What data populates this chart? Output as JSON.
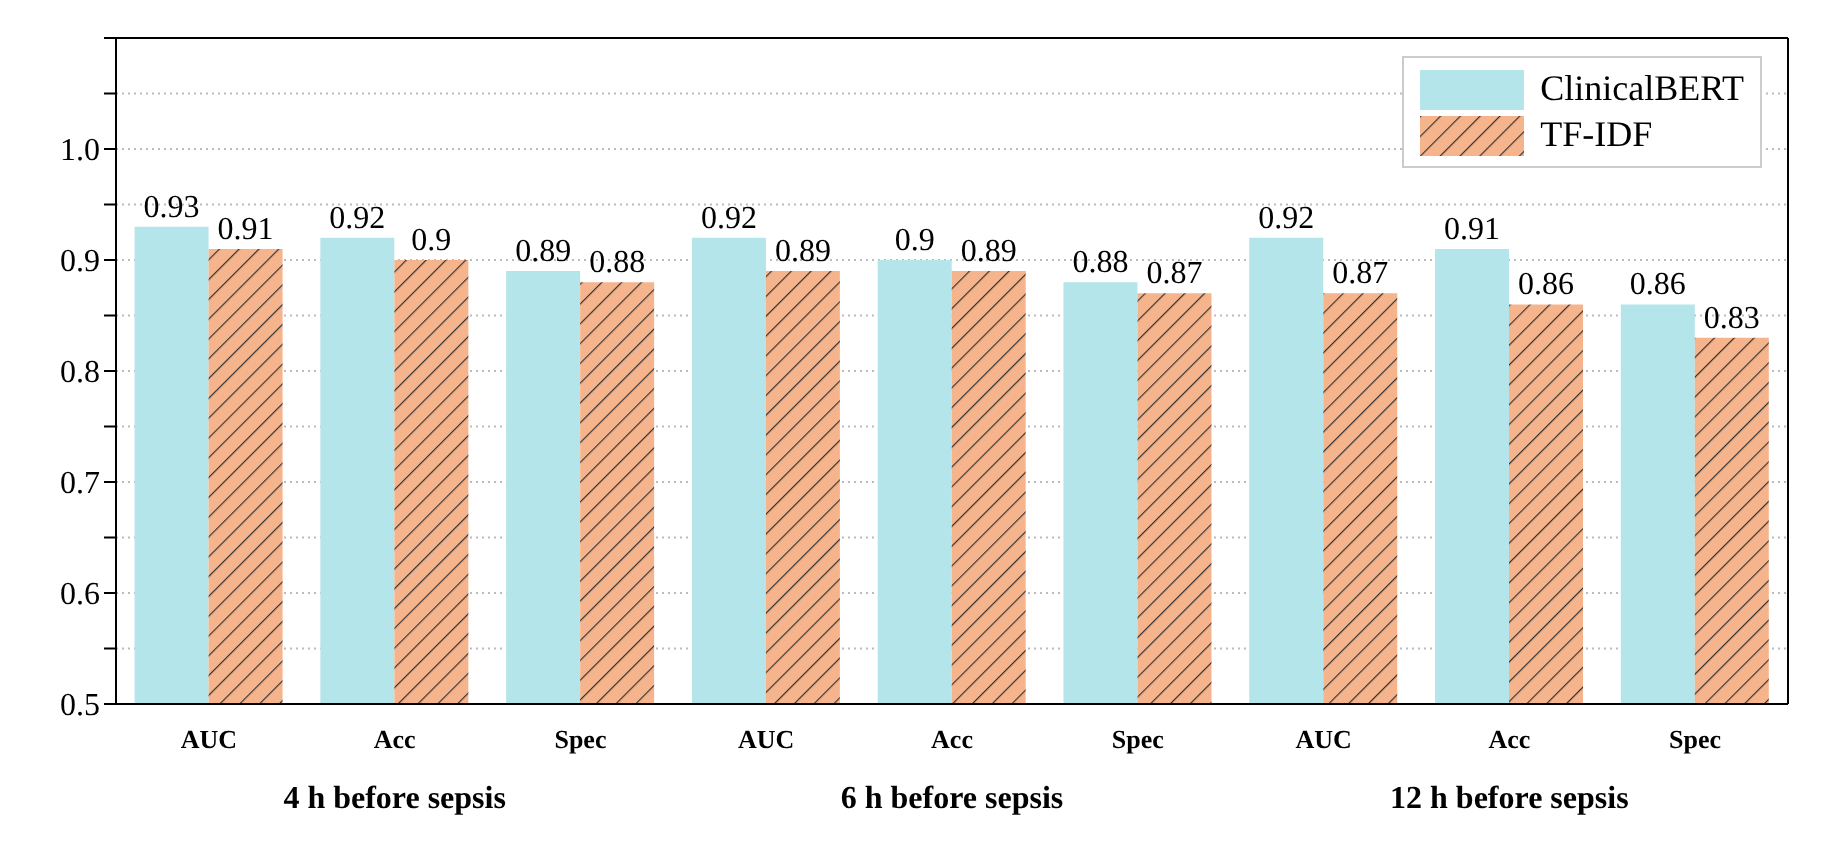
{
  "chart_data": {
    "type": "bar",
    "categories": [
      "AUC",
      "Acc",
      "Spec",
      "AUC",
      "Acc",
      "Spec",
      "AUC",
      "Acc",
      "Spec"
    ],
    "series": [
      {
        "name": "ClinicalBERT",
        "color": "#b3e5ea",
        "values": [
          0.93,
          0.92,
          0.89,
          0.92,
          0.9,
          0.88,
          0.92,
          0.91,
          0.86
        ]
      },
      {
        "name": "TF-IDF",
        "color": "#f6b48c",
        "values": [
          0.91,
          0.9,
          0.88,
          0.89,
          0.89,
          0.87,
          0.87,
          0.86,
          0.83
        ]
      }
    ],
    "annotations": [
      "4 h before sepsis",
      "6 h before sepsis",
      "12 h before sepsis"
    ],
    "ylim": [
      0.5,
      1.1
    ],
    "yticks": [
      0.5,
      {
        "value": 0.55,
        "label": null
      },
      0.6,
      {
        "value": 0.65,
        "label": null
      },
      0.7,
      {
        "value": 0.75,
        "label": null
      },
      0.8,
      {
        "value": 0.85,
        "label": null
      },
      0.9,
      {
        "value": 0.95,
        "label": null
      },
      {
        "value": 1.0,
        "label": "1.0"
      },
      {
        "value": 1.05,
        "label": null
      },
      {
        "value": 1.1,
        "label": null
      }
    ],
    "grid": "y",
    "legend": "top right",
    "data_labels": true
  }
}
